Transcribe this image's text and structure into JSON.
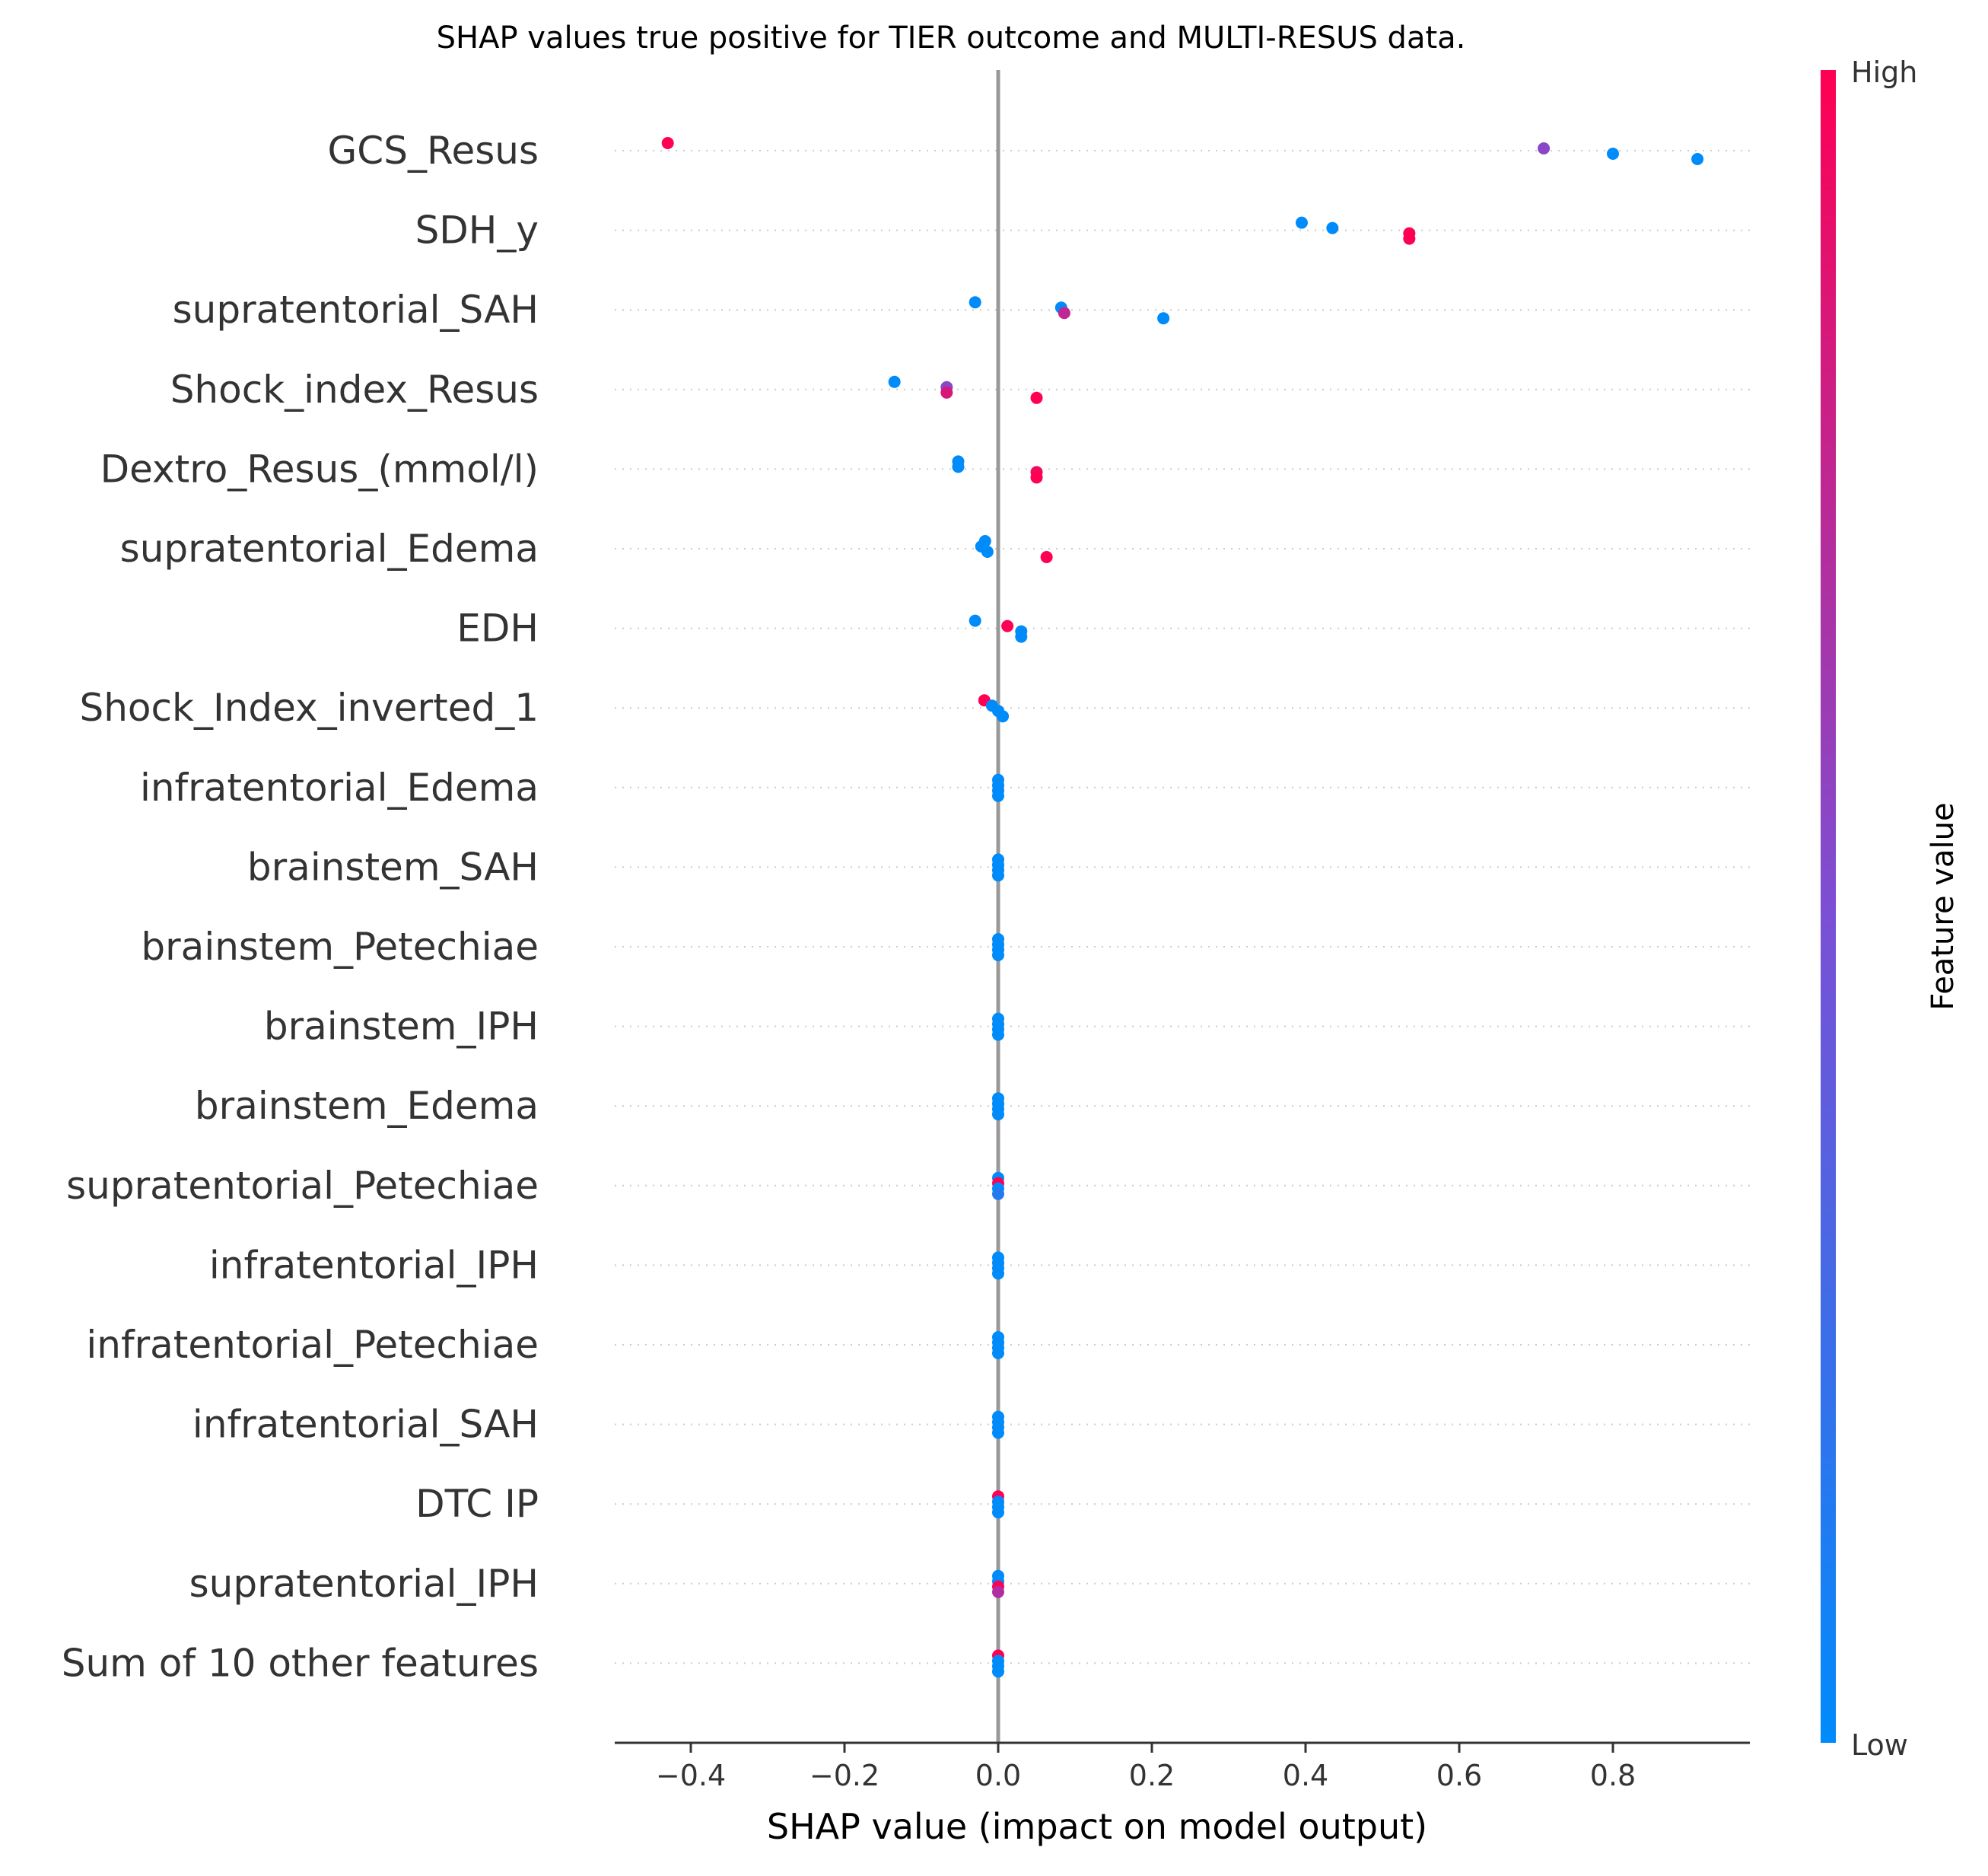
{
  "chart_data": {
    "type": "scatter",
    "subtype": "shap-beeswarm",
    "title": "SHAP values true positive for TIER outcome and MULTI-RESUS data.",
    "xlabel": "SHAP value (impact on model output)",
    "xlim": [
      -0.5,
      0.98
    ],
    "xticks": [
      -0.4,
      -0.2,
      0.0,
      0.2,
      0.4,
      0.6,
      0.8
    ],
    "xtick_labels": [
      "−0.4",
      "−0.2",
      "0.0",
      "0.2",
      "0.4",
      "0.6",
      "0.8"
    ],
    "colorbar": {
      "label": "Feature value",
      "high_label": "High",
      "low_label": "Low",
      "low_color": "#008bfb",
      "mid_color": "#7c4fd4",
      "high_color": "#ff0052"
    },
    "zero_line_color": "#999999",
    "grid": "dotted per-row",
    "features": [
      {
        "name": "GCS_Resus",
        "points": [
          {
            "x": -0.43,
            "v": 1.0
          },
          {
            "x": 0.71,
            "v": 0.55
          },
          {
            "x": 0.8,
            "v": 0.0
          },
          {
            "x": 0.91,
            "v": 0.0
          }
        ]
      },
      {
        "name": "SDH_y",
        "points": [
          {
            "x": 0.395,
            "v": 0.0
          },
          {
            "x": 0.435,
            "v": 0.0
          },
          {
            "x": 0.535,
            "v": 1.0
          },
          {
            "x": 0.535,
            "v": 1.0
          }
        ]
      },
      {
        "name": "supratentorial_SAH",
        "points": [
          {
            "x": -0.03,
            "v": 0.0
          },
          {
            "x": 0.082,
            "v": 0.0
          },
          {
            "x": 0.086,
            "v": 0.75
          },
          {
            "x": 0.215,
            "v": 0.0
          }
        ]
      },
      {
        "name": "Shock_index_Resus",
        "points": [
          {
            "x": -0.135,
            "v": 0.0
          },
          {
            "x": -0.067,
            "v": 0.55
          },
          {
            "x": -0.067,
            "v": 0.85
          },
          {
            "x": 0.05,
            "v": 1.0
          }
        ]
      },
      {
        "name": "Dextro_Resus_(mmol/l)",
        "points": [
          {
            "x": -0.052,
            "v": 0.0
          },
          {
            "x": -0.052,
            "v": 0.0
          },
          {
            "x": 0.05,
            "v": 0.95
          },
          {
            "x": 0.05,
            "v": 1.0
          }
        ]
      },
      {
        "name": "supratentorial_Edema",
        "points": [
          {
            "x": -0.017,
            "v": 0.0
          },
          {
            "x": -0.022,
            "v": 0.0
          },
          {
            "x": -0.014,
            "v": 0.0
          },
          {
            "x": 0.063,
            "v": 1.0
          }
        ]
      },
      {
        "name": "EDH",
        "points": [
          {
            "x": -0.03,
            "v": 0.0
          },
          {
            "x": 0.012,
            "v": 1.0
          },
          {
            "x": 0.03,
            "v": 0.0
          },
          {
            "x": 0.03,
            "v": 0.0
          }
        ]
      },
      {
        "name": "Shock_Index_inverted_1",
        "points": [
          {
            "x": -0.018,
            "v": 1.0
          },
          {
            "x": -0.008,
            "v": 0.0
          },
          {
            "x": 0.0,
            "v": 0.0
          },
          {
            "x": 0.006,
            "v": 0.0
          }
        ]
      },
      {
        "name": "infratentorial_Edema",
        "points": [
          {
            "x": 0.0,
            "v": 0.0
          },
          {
            "x": 0.0,
            "v": 0.0
          },
          {
            "x": 0.0,
            "v": 0.0
          },
          {
            "x": 0.0,
            "v": 0.0
          }
        ]
      },
      {
        "name": "brainstem_SAH",
        "points": [
          {
            "x": 0.0,
            "v": 0.0
          },
          {
            "x": 0.0,
            "v": 0.0
          },
          {
            "x": 0.0,
            "v": 0.0
          },
          {
            "x": 0.0,
            "v": 0.0
          }
        ]
      },
      {
        "name": "brainstem_Petechiae",
        "points": [
          {
            "x": 0.0,
            "v": 0.0
          },
          {
            "x": 0.0,
            "v": 0.0
          },
          {
            "x": 0.0,
            "v": 0.0
          },
          {
            "x": 0.0,
            "v": 0.0
          }
        ]
      },
      {
        "name": "brainstem_IPH",
        "points": [
          {
            "x": 0.0,
            "v": 0.0
          },
          {
            "x": 0.0,
            "v": 0.0
          },
          {
            "x": 0.0,
            "v": 0.0
          },
          {
            "x": 0.0,
            "v": 0.0
          }
        ]
      },
      {
        "name": "brainstem_Edema",
        "points": [
          {
            "x": 0.0,
            "v": 0.0
          },
          {
            "x": 0.0,
            "v": 0.0
          },
          {
            "x": 0.0,
            "v": 0.0
          },
          {
            "x": 0.0,
            "v": 0.0
          }
        ]
      },
      {
        "name": "supratentorial_Petechiae",
        "points": [
          {
            "x": 0.0,
            "v": 0.0
          },
          {
            "x": 0.0,
            "v": 1.0
          },
          {
            "x": 0.0,
            "v": 0.0
          },
          {
            "x": 0.0,
            "v": 0.15
          }
        ]
      },
      {
        "name": "infratentorial_IPH",
        "points": [
          {
            "x": 0.0,
            "v": 0.0
          },
          {
            "x": 0.0,
            "v": 0.0
          },
          {
            "x": 0.0,
            "v": 0.0
          },
          {
            "x": 0.0,
            "v": 0.0
          }
        ]
      },
      {
        "name": "infratentorial_Petechiae",
        "points": [
          {
            "x": 0.0,
            "v": 0.0
          },
          {
            "x": 0.0,
            "v": 0.0
          },
          {
            "x": 0.0,
            "v": 0.0
          },
          {
            "x": 0.0,
            "v": 0.0
          }
        ]
      },
      {
        "name": "infratentorial_SAH",
        "points": [
          {
            "x": 0.0,
            "v": 0.0
          },
          {
            "x": 0.0,
            "v": 0.0
          },
          {
            "x": 0.0,
            "v": 0.0
          },
          {
            "x": 0.0,
            "v": 0.0
          }
        ]
      },
      {
        "name": "DTC IP",
        "points": [
          {
            "x": 0.0,
            "v": 1.0
          },
          {
            "x": 0.0,
            "v": 0.0
          },
          {
            "x": 0.0,
            "v": 0.0
          },
          {
            "x": 0.0,
            "v": 0.0
          }
        ]
      },
      {
        "name": "supratentorial_IPH",
        "points": [
          {
            "x": 0.0,
            "v": 0.0
          },
          {
            "x": 0.0,
            "v": 0.0
          },
          {
            "x": 0.0,
            "v": 1.0
          },
          {
            "x": 0.0,
            "v": 0.7
          }
        ]
      },
      {
        "name": "Sum of 10 other features",
        "points": [
          {
            "x": 0.0,
            "v": 1.0
          },
          {
            "x": 0.0,
            "v": 0.0
          },
          {
            "x": 0.0,
            "v": 0.0
          },
          {
            "x": 0.0,
            "v": 0.0
          }
        ]
      }
    ]
  }
}
